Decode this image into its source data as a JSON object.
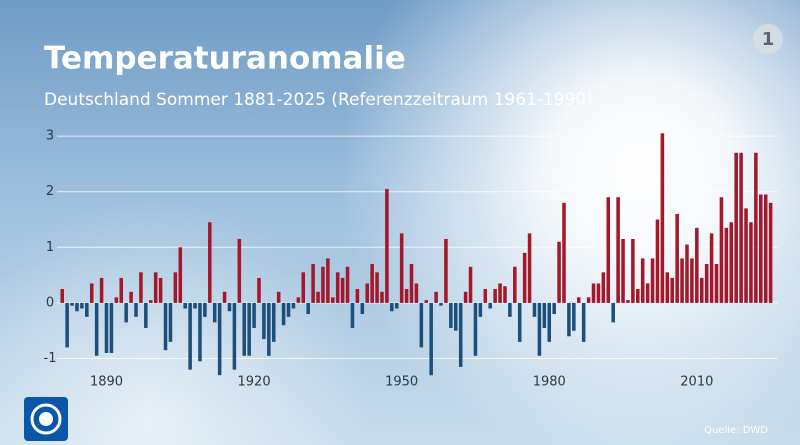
{
  "chart_data": {
    "type": "bar",
    "title": "Temperaturanomalie",
    "subtitle": "Deutschland Sommer 1881-2025 (Referenzzeitraum 1961-1990)",
    "source": "Quelle: DWD",
    "x": [
      1881,
      1882,
      1883,
      1884,
      1885,
      1886,
      1887,
      1888,
      1889,
      1890,
      1891,
      1892,
      1893,
      1894,
      1895,
      1896,
      1897,
      1898,
      1899,
      1900,
      1901,
      1902,
      1903,
      1904,
      1905,
      1906,
      1907,
      1908,
      1909,
      1910,
      1911,
      1912,
      1913,
      1914,
      1915,
      1916,
      1917,
      1918,
      1919,
      1920,
      1921,
      1922,
      1923,
      1924,
      1925,
      1926,
      1927,
      1928,
      1929,
      1930,
      1931,
      1932,
      1933,
      1934,
      1935,
      1936,
      1937,
      1938,
      1939,
      1940,
      1941,
      1942,
      1943,
      1944,
      1945,
      1946,
      1947,
      1948,
      1949,
      1950,
      1951,
      1952,
      1953,
      1954,
      1955,
      1956,
      1957,
      1958,
      1959,
      1960,
      1961,
      1962,
      1963,
      1964,
      1965,
      1966,
      1967,
      1968,
      1969,
      1970,
      1971,
      1972,
      1973,
      1974,
      1975,
      1976,
      1977,
      1978,
      1979,
      1980,
      1981,
      1982,
      1983,
      1984,
      1985,
      1986,
      1987,
      1988,
      1989,
      1990,
      1991,
      1992,
      1993,
      1994,
      1995,
      1996,
      1997,
      1998,
      1999,
      2000,
      2001,
      2002,
      2003,
      2004,
      2005,
      2006,
      2007,
      2008,
      2009,
      2010,
      2011,
      2012,
      2013,
      2014,
      2015,
      2016,
      2017,
      2018,
      2019,
      2020,
      2021,
      2022,
      2023,
      2024,
      2025
    ],
    "values": [
      0.25,
      -0.8,
      -0.05,
      -0.15,
      -0.1,
      -0.25,
      0.35,
      -0.95,
      0.45,
      -0.9,
      -0.9,
      0.1,
      0.45,
      -0.35,
      0.2,
      -0.25,
      0.55,
      -0.45,
      0.05,
      0.55,
      0.45,
      -0.85,
      -0.7,
      0.55,
      1.0,
      -0.1,
      -1.2,
      -0.1,
      -1.05,
      -0.25,
      1.45,
      -0.35,
      -1.3,
      0.2,
      -0.15,
      -1.2,
      1.15,
      -0.95,
      -0.95,
      -0.45,
      0.45,
      -0.65,
      -0.95,
      -0.7,
      0.2,
      -0.4,
      -0.25,
      -0.1,
      0.1,
      0.55,
      -0.2,
      0.7,
      0.2,
      0.65,
      0.8,
      0.1,
      0.55,
      0.45,
      0.65,
      -0.45,
      0.25,
      -0.2,
      0.35,
      0.7,
      0.55,
      0.2,
      2.05,
      -0.15,
      -0.1,
      1.25,
      0.25,
      0.7,
      0.35,
      -0.8,
      0.05,
      -1.3,
      0.2,
      -0.05,
      1.15,
      -0.45,
      -0.5,
      -1.15,
      0.2,
      0.65,
      -0.95,
      -0.25,
      0.25,
      -0.1,
      0.25,
      0.35,
      0.3,
      -0.25,
      0.65,
      -0.7,
      0.9,
      1.25,
      -0.25,
      -0.95,
      -0.45,
      -0.7,
      -0.2,
      1.1,
      1.8,
      -0.6,
      -0.5,
      0.1,
      -0.7,
      0.1,
      0.35,
      0.35,
      0.55,
      1.9,
      -0.35,
      1.9,
      1.15,
      0.05,
      1.15,
      0.25,
      0.8,
      0.35,
      0.8,
      1.5,
      3.05,
      0.55,
      0.45,
      1.6,
      0.8,
      1.05,
      0.8,
      1.35,
      0.45,
      0.7,
      1.25,
      0.7,
      1.9,
      1.35,
      1.45,
      2.7,
      2.7,
      1.7,
      1.45,
      2.7,
      1.95,
      1.95,
      1.8
    ],
    "positive_color": "#a3182a",
    "negative_color": "#1d4f7c",
    "xlim": [
      1877.5,
      2026.5
    ],
    "xticks": [
      1890,
      1920,
      1950,
      1980,
      2010
    ],
    "ylim": [
      -1.35,
      3.3
    ],
    "yticks": [
      -1,
      0,
      1,
      2,
      3
    ],
    "grid": true
  }
}
